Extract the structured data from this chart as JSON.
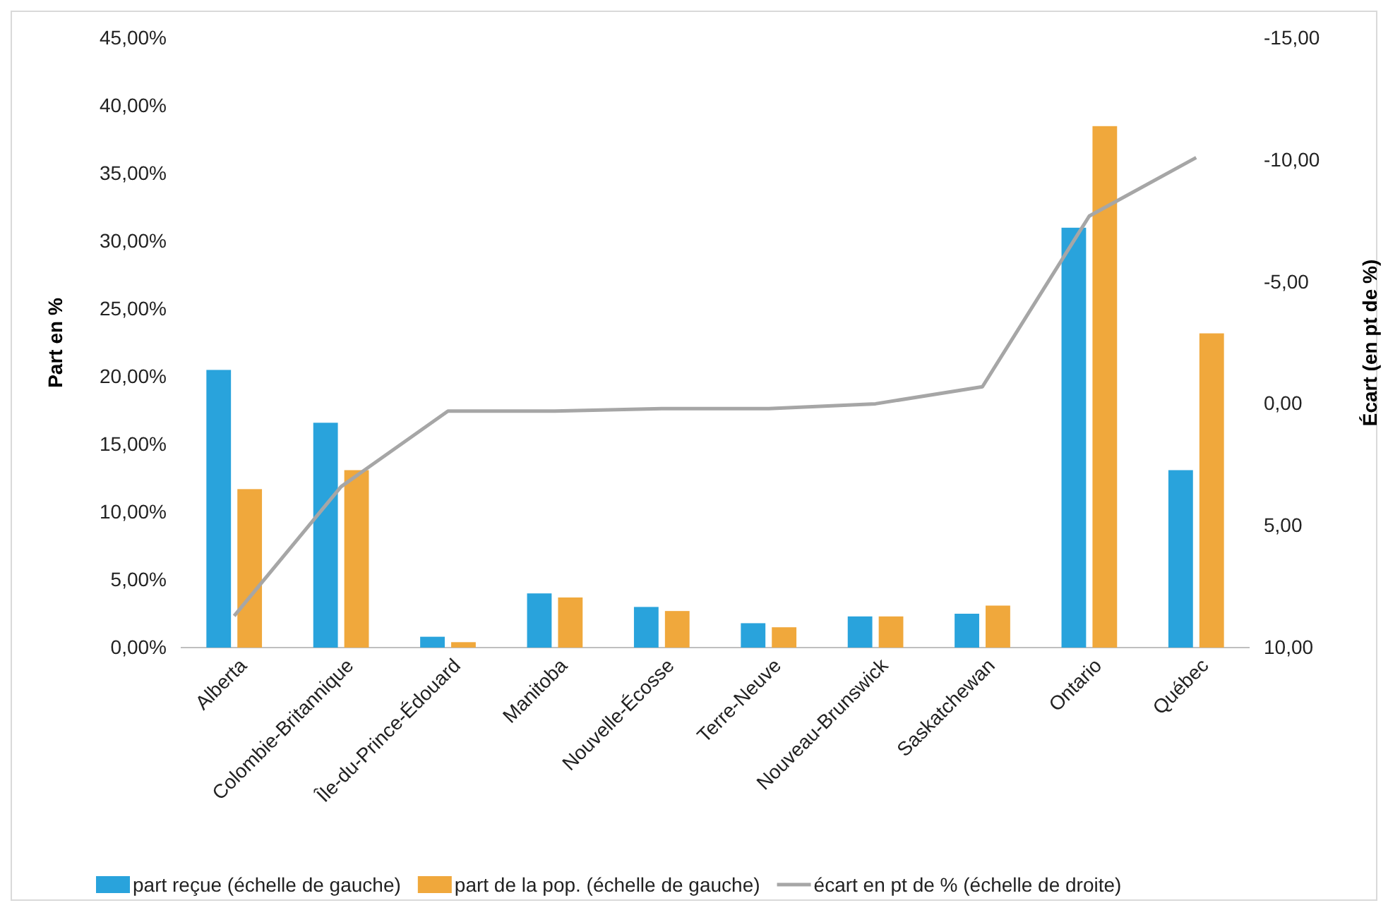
{
  "chart_data": {
    "type": "bar",
    "ylabel": "Part en %",
    "y2label": "Écart (en pt de %)",
    "categories": [
      "Alberta",
      "Colombie-Britannique",
      "Île-du-Prince-Édouard",
      "Manitoba",
      "Nouvelle-Écosse",
      "Terre-Neuve",
      "Nouveau-Brunswick",
      "Saskatchewan",
      "Ontario",
      "Québec"
    ],
    "series": [
      {
        "name": "part reçue (échelle de gauche)",
        "color": "#29a3dc",
        "values": [
          20.5,
          16.6,
          0.8,
          4.0,
          3.0,
          1.8,
          2.3,
          2.5,
          31.0,
          13.1
        ]
      },
      {
        "name": "part de la pop. (échelle de gauche)",
        "color": "#f0a83c",
        "values": [
          11.7,
          13.1,
          0.4,
          3.7,
          2.7,
          1.5,
          2.3,
          3.1,
          38.5,
          23.2
        ]
      },
      {
        "name": "écart en pt de % (échelle de droite)",
        "color": "#a6a6a6",
        "type": "line",
        "axis": "y2",
        "values": [
          8.7,
          3.4,
          0.3,
          0.3,
          0.2,
          0.2,
          0.0,
          -0.7,
          -7.7,
          -10.1
        ]
      }
    ],
    "ylim": [
      0,
      45
    ],
    "yticks": [
      {
        "value": 0,
        "label": "0,00%"
      },
      {
        "value": 5,
        "label": "5,00%"
      },
      {
        "value": 10,
        "label": "10,00%"
      },
      {
        "value": 15,
        "label": "15,00%"
      },
      {
        "value": 20,
        "label": "20,00%"
      },
      {
        "value": 25,
        "label": "25,00%"
      },
      {
        "value": 30,
        "label": "30,00%"
      },
      {
        "value": 35,
        "label": "35,00%"
      },
      {
        "value": 40,
        "label": "40,00%"
      },
      {
        "value": 45,
        "label": "45,00%"
      }
    ],
    "y2lim": [
      10,
      -15
    ],
    "y2ticks": [
      {
        "value": 10,
        "label": "10,00"
      },
      {
        "value": 5,
        "label": "5,00"
      },
      {
        "value": 0,
        "label": "0,00"
      },
      {
        "value": -5,
        "label": "-5,00"
      },
      {
        "value": -10,
        "label": "-10,00"
      },
      {
        "value": -15,
        "label": "-15,00"
      }
    ],
    "legend": "bottom",
    "marker": "none",
    "line_style": "solid"
  }
}
